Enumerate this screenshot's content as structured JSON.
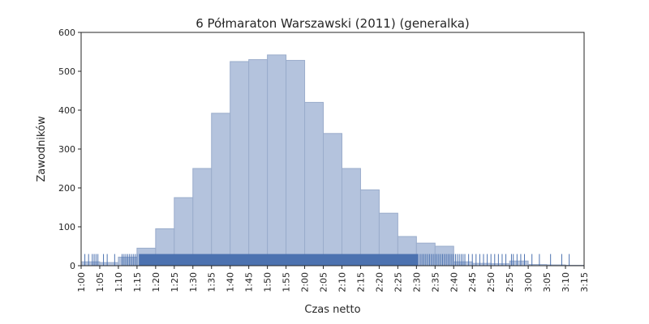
{
  "chart_data": {
    "type": "bar",
    "title": "6 Półmaraton Warszawski (2011) (generalka)",
    "xlabel": "Czas netto",
    "ylabel": "Zawodników",
    "xlim": [
      60,
      195
    ],
    "ylim": [
      0,
      600
    ],
    "x_ticks": [
      {
        "value": 60,
        "label": "1:00"
      },
      {
        "value": 65,
        "label": "1:05"
      },
      {
        "value": 70,
        "label": "1:10"
      },
      {
        "value": 75,
        "label": "1:15"
      },
      {
        "value": 80,
        "label": "1:20"
      },
      {
        "value": 85,
        "label": "1:25"
      },
      {
        "value": 90,
        "label": "1:30"
      },
      {
        "value": 95,
        "label": "1:35"
      },
      {
        "value": 100,
        "label": "1:40"
      },
      {
        "value": 105,
        "label": "1:45"
      },
      {
        "value": 110,
        "label": "1:50"
      },
      {
        "value": 115,
        "label": "1:55"
      },
      {
        "value": 120,
        "label": "2:00"
      },
      {
        "value": 125,
        "label": "2:05"
      },
      {
        "value": 130,
        "label": "2:10"
      },
      {
        "value": 135,
        "label": "2:15"
      },
      {
        "value": 140,
        "label": "2:20"
      },
      {
        "value": 145,
        "label": "2:25"
      },
      {
        "value": 150,
        "label": "2:30"
      },
      {
        "value": 155,
        "label": "2:35"
      },
      {
        "value": 160,
        "label": "2:40"
      },
      {
        "value": 165,
        "label": "2:45"
      },
      {
        "value": 170,
        "label": "2:50"
      },
      {
        "value": 175,
        "label": "2:55"
      },
      {
        "value": 180,
        "label": "3:00"
      },
      {
        "value": 185,
        "label": "3:05"
      },
      {
        "value": 190,
        "label": "3:10"
      },
      {
        "value": 195,
        "label": "3:15"
      }
    ],
    "y_ticks": [
      0,
      100,
      200,
      300,
      400,
      500,
      600
    ],
    "bins": [
      {
        "x0": 60,
        "x1": 65,
        "count": 10
      },
      {
        "x0": 65,
        "x1": 70,
        "count": 8
      },
      {
        "x0": 70,
        "x1": 75,
        "count": 22
      },
      {
        "x0": 75,
        "x1": 80,
        "count": 45
      },
      {
        "x0": 80,
        "x1": 85,
        "count": 95
      },
      {
        "x0": 85,
        "x1": 90,
        "count": 175
      },
      {
        "x0": 90,
        "x1": 95,
        "count": 250
      },
      {
        "x0": 95,
        "x1": 100,
        "count": 392
      },
      {
        "x0": 100,
        "x1": 105,
        "count": 525
      },
      {
        "x0": 105,
        "x1": 110,
        "count": 530
      },
      {
        "x0": 110,
        "x1": 115,
        "count": 542
      },
      {
        "x0": 115,
        "x1": 120,
        "count": 528
      },
      {
        "x0": 120,
        "x1": 125,
        "count": 420
      },
      {
        "x0": 125,
        "x1": 130,
        "count": 340
      },
      {
        "x0": 130,
        "x1": 135,
        "count": 250
      },
      {
        "x0": 135,
        "x1": 140,
        "count": 195
      },
      {
        "x0": 140,
        "x1": 145,
        "count": 135
      },
      {
        "x0": 145,
        "x1": 150,
        "count": 75
      },
      {
        "x0": 150,
        "x1": 155,
        "count": 58
      },
      {
        "x0": 155,
        "x1": 160,
        "count": 50
      },
      {
        "x0": 160,
        "x1": 165,
        "count": 10
      },
      {
        "x0": 165,
        "x1": 170,
        "count": 6
      },
      {
        "x0": 170,
        "x1": 175,
        "count": 5
      },
      {
        "x0": 175,
        "x1": 180,
        "count": 12
      },
      {
        "x0": 180,
        "x1": 185,
        "count": 3
      },
      {
        "x0": 185,
        "x1": 190,
        "count": 2
      },
      {
        "x0": 190,
        "x1": 195,
        "count": 1
      }
    ],
    "rug_height": 30,
    "rug_dense_range": [
      75.5,
      150.5
    ],
    "rug_sparse": [
      61,
      62,
      63,
      63.5,
      64,
      64.5,
      66,
      67,
      69,
      71,
      71.5,
      72,
      72.5,
      73,
      73.5,
      74,
      74.5,
      75,
      151,
      151.5,
      152,
      152.5,
      153,
      153.5,
      154,
      154.5,
      155,
      155.5,
      156,
      156.5,
      157,
      157.5,
      158,
      158.5,
      159,
      159.5,
      160,
      160.5,
      161,
      161.5,
      162,
      162.5,
      163,
      164,
      165,
      166,
      167,
      168,
      169,
      170,
      171,
      172,
      173,
      174,
      175.5,
      176,
      177,
      178,
      179,
      181,
      183,
      186,
      189,
      191
    ],
    "grid": false,
    "bar_color": "#b4c3dd",
    "bar_edge_color": "#9aaccb",
    "rug_color": "#4c72b0"
  }
}
